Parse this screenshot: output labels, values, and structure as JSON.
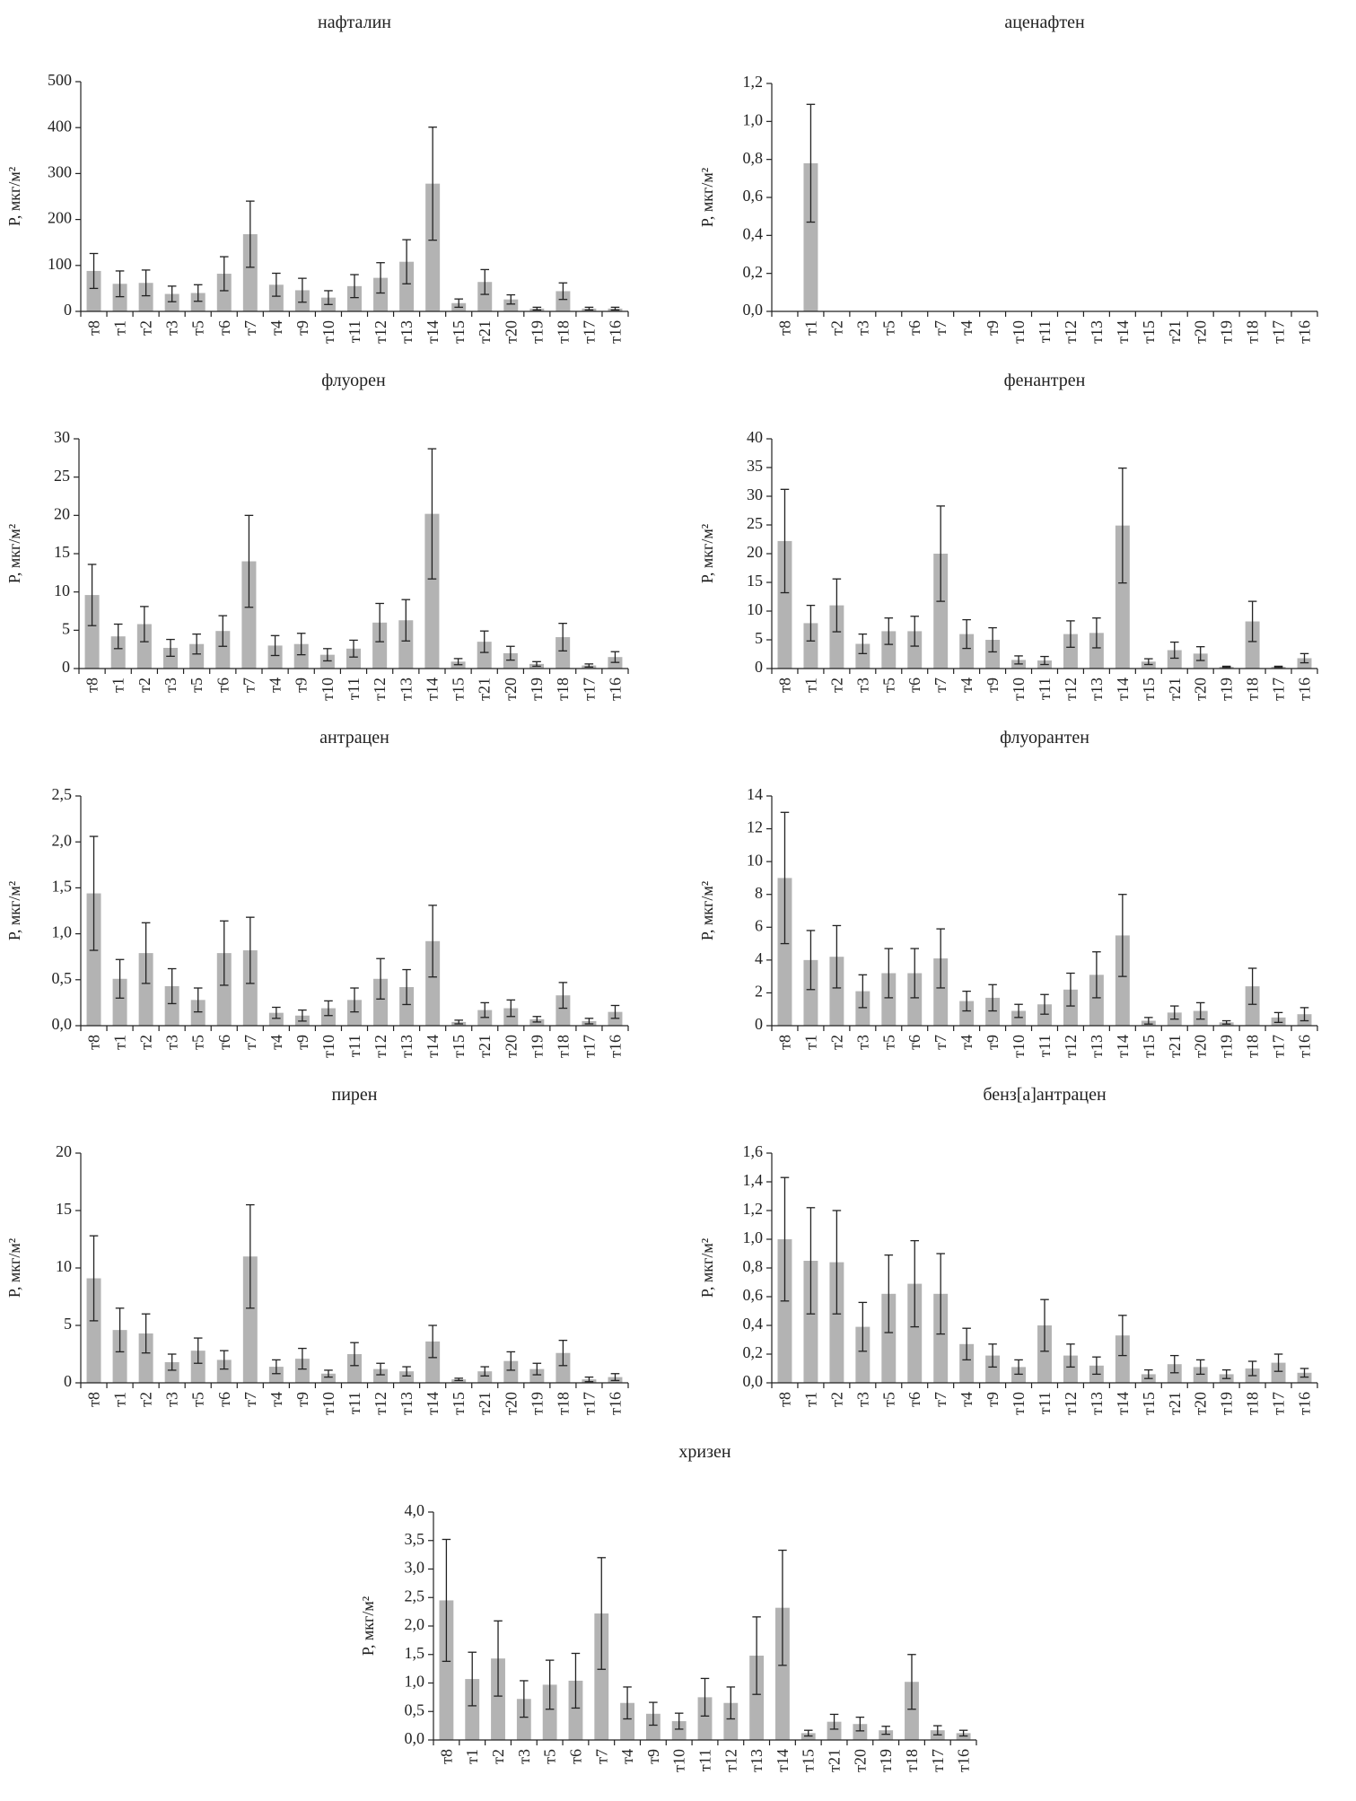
{
  "style": {
    "bar_color": "#b3b3b3",
    "axis_color": "#222222",
    "error_bar_color": "#222222"
  },
  "chart_data": [
    {
      "type": "bar",
      "title": "нафталин",
      "ylabel": "P, мкг/м²",
      "xlabel": "",
      "ylim": [
        0,
        500
      ],
      "yticks": [
        0,
        100,
        200,
        300,
        400,
        500
      ],
      "decimals": 0,
      "categories": [
        "т8",
        "т1",
        "т2",
        "т3",
        "т5",
        "т6",
        "т7",
        "т4",
        "т9",
        "т10",
        "т11",
        "т12",
        "т13",
        "т14",
        "т15",
        "т21",
        "т20",
        "т19",
        "т18",
        "т17",
        "т16"
      ],
      "values": [
        88,
        60,
        62,
        38,
        40,
        82,
        168,
        58,
        46,
        30,
        55,
        73,
        108,
        278,
        18,
        64,
        26,
        6,
        44,
        6,
        6
      ],
      "errors": [
        38,
        28,
        28,
        17,
        18,
        37,
        72,
        25,
        26,
        15,
        25,
        33,
        48,
        123,
        9,
        27,
        10,
        3,
        18,
        3,
        3
      ],
      "grid": false
    },
    {
      "type": "bar",
      "title": "аценафтен",
      "ylabel": "P, мкг/м²",
      "xlabel": "",
      "ylim": [
        0,
        1.2
      ],
      "yticks": [
        0,
        0.2,
        0.4,
        0.6,
        0.8,
        1.0,
        1.2
      ],
      "decimals": 1,
      "categories": [
        "т8",
        "т1",
        "т2",
        "т3",
        "т5",
        "т6",
        "т7",
        "т4",
        "т9",
        "т10",
        "т11",
        "т12",
        "т13",
        "т14",
        "т15",
        "т21",
        "т20",
        "т19",
        "т18",
        "т17",
        "т16"
      ],
      "values": [
        0,
        0.78,
        0,
        0,
        0,
        0,
        0,
        0,
        0,
        0,
        0,
        0,
        0,
        0,
        0,
        0,
        0,
        0,
        0,
        0,
        0
      ],
      "errors": [
        0,
        0.31,
        0,
        0,
        0,
        0,
        0,
        0,
        0,
        0,
        0,
        0,
        0,
        0,
        0,
        0,
        0,
        0,
        0,
        0,
        0
      ],
      "grid": false
    },
    {
      "type": "bar",
      "title": "флуорен",
      "ylabel": "P, мкг/м²",
      "xlabel": "",
      "ylim": [
        0,
        30
      ],
      "yticks": [
        0,
        5,
        10,
        15,
        20,
        25,
        30
      ],
      "decimals": 0,
      "categories": [
        "т8",
        "т1",
        "т2",
        "т3",
        "т5",
        "т6",
        "т7",
        "т4",
        "т9",
        "т10",
        "т11",
        "т12",
        "т13",
        "т14",
        "т15",
        "т21",
        "т20",
        "т19",
        "т18",
        "т17",
        "т16"
      ],
      "values": [
        9.6,
        4.2,
        5.8,
        2.7,
        3.2,
        4.9,
        14.0,
        3.0,
        3.2,
        1.8,
        2.6,
        6.0,
        6.3,
        20.2,
        0.9,
        3.5,
        2.0,
        0.6,
        4.1,
        0.4,
        1.5
      ],
      "errors": [
        4.0,
        1.6,
        2.3,
        1.1,
        1.3,
        2.0,
        6.0,
        1.3,
        1.4,
        0.8,
        1.1,
        2.5,
        2.7,
        8.5,
        0.4,
        1.4,
        0.9,
        0.3,
        1.8,
        0.2,
        0.7
      ],
      "grid": false
    },
    {
      "type": "bar",
      "title": "фенантрен",
      "ylabel": "P, мкг/м²",
      "xlabel": "",
      "ylim": [
        0,
        40
      ],
      "yticks": [
        0,
        5,
        10,
        15,
        20,
        25,
        30,
        35,
        40
      ],
      "decimals": 0,
      "categories": [
        "т8",
        "т1",
        "т2",
        "т3",
        "т5",
        "т6",
        "т7",
        "т4",
        "т9",
        "т10",
        "т11",
        "т12",
        "т13",
        "т14",
        "т15",
        "т21",
        "т20",
        "т19",
        "т18",
        "т17",
        "т16"
      ],
      "values": [
        22.2,
        7.9,
        11.0,
        4.3,
        6.5,
        6.5,
        20.0,
        6.0,
        5.0,
        1.5,
        1.4,
        6.0,
        6.2,
        24.9,
        1.2,
        3.2,
        2.6,
        0.3,
        8.2,
        0.3,
        1.8
      ],
      "errors": [
        9.0,
        3.1,
        4.6,
        1.7,
        2.3,
        2.6,
        8.3,
        2.5,
        2.1,
        0.7,
        0.7,
        2.3,
        2.6,
        10.0,
        0.5,
        1.4,
        1.2,
        0.1,
        3.5,
        0.1,
        0.8
      ],
      "grid": false
    },
    {
      "type": "bar",
      "title": "антрацен",
      "ylabel": "P, мкг/м²",
      "xlabel": "",
      "ylim": [
        0,
        2.5
      ],
      "yticks": [
        0,
        0.5,
        1.0,
        1.5,
        2.0,
        2.5
      ],
      "decimals": 1,
      "categories": [
        "т8",
        "т1",
        "т2",
        "т3",
        "т5",
        "т6",
        "т7",
        "т4",
        "т9",
        "т10",
        "т11",
        "т12",
        "т13",
        "т14",
        "т15",
        "т21",
        "т20",
        "т19",
        "т18",
        "т17",
        "т16"
      ],
      "values": [
        1.44,
        0.51,
        0.79,
        0.43,
        0.28,
        0.79,
        0.82,
        0.14,
        0.11,
        0.19,
        0.28,
        0.51,
        0.42,
        0.92,
        0.04,
        0.17,
        0.19,
        0.07,
        0.33,
        0.05,
        0.15
      ],
      "errors": [
        0.62,
        0.21,
        0.33,
        0.19,
        0.13,
        0.35,
        0.36,
        0.06,
        0.06,
        0.08,
        0.13,
        0.22,
        0.19,
        0.39,
        0.02,
        0.08,
        0.09,
        0.03,
        0.14,
        0.03,
        0.07
      ],
      "grid": false
    },
    {
      "type": "bar",
      "title": "флуорантен",
      "ylabel": "P, мкг/м²",
      "xlabel": "",
      "ylim": [
        0,
        14
      ],
      "yticks": [
        0,
        2,
        4,
        6,
        8,
        10,
        12,
        14
      ],
      "decimals": 0,
      "categories": [
        "т8",
        "т1",
        "т2",
        "т3",
        "т5",
        "т6",
        "т7",
        "т4",
        "т9",
        "т10",
        "т11",
        "т12",
        "т13",
        "т14",
        "т15",
        "т21",
        "т20",
        "т19",
        "т18",
        "т17",
        "т16"
      ],
      "values": [
        9.0,
        4.0,
        4.2,
        2.1,
        3.2,
        3.2,
        4.1,
        1.5,
        1.7,
        0.9,
        1.3,
        2.2,
        3.1,
        5.5,
        0.3,
        0.8,
        0.9,
        0.2,
        2.4,
        0.5,
        0.7
      ],
      "errors": [
        4.0,
        1.8,
        1.9,
        1.0,
        1.5,
        1.5,
        1.8,
        0.6,
        0.8,
        0.4,
        0.6,
        1.0,
        1.4,
        2.5,
        0.2,
        0.4,
        0.5,
        0.1,
        1.1,
        0.3,
        0.4
      ],
      "grid": false
    },
    {
      "type": "bar",
      "title": "пирен",
      "ylabel": "P, мкг/м²",
      "xlabel": "",
      "ylim": [
        0,
        20
      ],
      "yticks": [
        0,
        5,
        10,
        15,
        20
      ],
      "decimals": 0,
      "categories": [
        "т8",
        "т1",
        "т2",
        "т3",
        "т5",
        "т6",
        "т7",
        "т4",
        "т9",
        "т10",
        "т11",
        "т12",
        "т13",
        "т14",
        "т15",
        "т21",
        "т20",
        "т19",
        "т18",
        "т17",
        "т16"
      ],
      "values": [
        9.1,
        4.6,
        4.3,
        1.8,
        2.8,
        2.0,
        11.0,
        1.4,
        2.1,
        0.8,
        2.5,
        1.2,
        1.0,
        3.6,
        0.3,
        1.0,
        1.9,
        1.2,
        2.6,
        0.3,
        0.5
      ],
      "errors": [
        3.7,
        1.9,
        1.7,
        0.7,
        1.1,
        0.8,
        4.5,
        0.6,
        0.9,
        0.3,
        1.0,
        0.5,
        0.4,
        1.4,
        0.1,
        0.4,
        0.8,
        0.5,
        1.1,
        0.2,
        0.3
      ],
      "grid": false
    },
    {
      "type": "bar",
      "title": "бенз[а]антрацен",
      "ylabel": "P, мкг/м²",
      "xlabel": "",
      "ylim": [
        0,
        1.6
      ],
      "yticks": [
        0,
        0.2,
        0.4,
        0.6,
        0.8,
        1.0,
        1.2,
        1.4,
        1.6
      ],
      "decimals": 1,
      "categories": [
        "т8",
        "т1",
        "т2",
        "т3",
        "т5",
        "т6",
        "т7",
        "т4",
        "т9",
        "т10",
        "т11",
        "т12",
        "т13",
        "т14",
        "т15",
        "т21",
        "т20",
        "т19",
        "т18",
        "т17",
        "т16"
      ],
      "values": [
        1.0,
        0.85,
        0.84,
        0.39,
        0.62,
        0.69,
        0.62,
        0.27,
        0.19,
        0.11,
        0.4,
        0.19,
        0.12,
        0.33,
        0.06,
        0.13,
        0.11,
        0.06,
        0.1,
        0.14,
        0.07
      ],
      "errors": [
        0.43,
        0.37,
        0.36,
        0.17,
        0.27,
        0.3,
        0.28,
        0.11,
        0.08,
        0.05,
        0.18,
        0.08,
        0.06,
        0.14,
        0.03,
        0.06,
        0.05,
        0.03,
        0.05,
        0.06,
        0.03
      ],
      "grid": false
    },
    {
      "type": "bar",
      "title": "хризен",
      "ylabel": "P, мкг/м²",
      "xlabel": "",
      "ylim": [
        0,
        4.0
      ],
      "yticks": [
        0,
        0.5,
        1.0,
        1.5,
        2.0,
        2.5,
        3.0,
        3.5,
        4.0
      ],
      "decimals": 1,
      "categories": [
        "т8",
        "т1",
        "т2",
        "т3",
        "т5",
        "т6",
        "т7",
        "т4",
        "т9",
        "т10",
        "т11",
        "т12",
        "т13",
        "т14",
        "т15",
        "т21",
        "т20",
        "т19",
        "т18",
        "т17",
        "т16"
      ],
      "values": [
        2.45,
        1.07,
        1.43,
        0.72,
        0.97,
        1.04,
        2.22,
        0.65,
        0.46,
        0.33,
        0.75,
        0.65,
        1.48,
        2.32,
        0.12,
        0.32,
        0.28,
        0.17,
        1.02,
        0.17,
        0.12
      ],
      "errors": [
        1.07,
        0.47,
        0.66,
        0.32,
        0.43,
        0.48,
        0.98,
        0.28,
        0.2,
        0.14,
        0.33,
        0.28,
        0.68,
        1.01,
        0.05,
        0.13,
        0.12,
        0.07,
        0.48,
        0.08,
        0.05
      ],
      "grid": false
    }
  ]
}
